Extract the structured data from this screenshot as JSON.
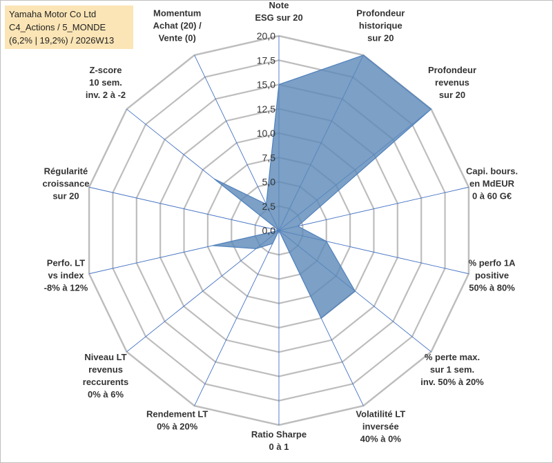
{
  "title_box": {
    "line1": "Yamaha Motor Co Ltd",
    "line2": "C4_Actions / 5_MONDE",
    "line3": "(6,2% | 19,2%) / 2026W13"
  },
  "chart_data": {
    "type": "radar",
    "title": "Yamaha Motor Co Ltd C4_Actions / 5_MONDE (6,2% | 19,2%) / 2026W13",
    "rlim": [
      0,
      20
    ],
    "tick_step": 2.5,
    "tick_labels": [
      "0,0",
      "2,5",
      "5,0",
      "7,5",
      "10,0",
      "12,5",
      "15,0",
      "17,5",
      "20,0"
    ],
    "grid": true,
    "axes": [
      {
        "label": [
          "Note",
          "ESG sur 20"
        ]
      },
      {
        "label": [
          "Profondeur",
          "historique",
          "sur 20"
        ]
      },
      {
        "label": [
          "Profondeur",
          "revenus",
          "sur 20"
        ]
      },
      {
        "label": [
          "Capi. bours.",
          "en MdEUR",
          "0 à 60 G€"
        ]
      },
      {
        "label": [
          "% perfo 1A",
          "positive",
          "50% à 80%"
        ]
      },
      {
        "label": [
          "% perte max.",
          "sur 1 sem.",
          "inv. 50% à 20%"
        ]
      },
      {
        "label": [
          "Volatilité LT",
          "inversée",
          "40% à 0%"
        ]
      },
      {
        "label": [
          "Ratio Sharpe",
          "0 à 1"
        ]
      },
      {
        "label": [
          "Rendement LT",
          "0% à 20%"
        ]
      },
      {
        "label": [
          "Niveau LT",
          "revenus",
          "reccurents",
          "0% à 6%"
        ]
      },
      {
        "label": [
          "Perfo. LT",
          "vs index",
          "-8% à 12%"
        ]
      },
      {
        "label": [
          "Régularité",
          "croissance",
          "sur 20"
        ]
      },
      {
        "label": [
          "Z-score",
          "10 sem.",
          "inv. 2 à -2"
        ]
      },
      {
        "label": [
          "Momentum",
          "Achat (20) /",
          "Vente (0)"
        ]
      }
    ],
    "series": [
      {
        "values": [
          15.0,
          20.0,
          20.0,
          2.0,
          5.0,
          10.0,
          10.0,
          0.0,
          1.5,
          3.0,
          7.0,
          0.0,
          8.5,
          3.0
        ],
        "color": "#4f81bd"
      }
    ],
    "colors": {
      "fill": "#5b88b8",
      "stroke": "#4f81bd",
      "grid": "#bdbdbd",
      "spoke": "#4472c4"
    }
  }
}
